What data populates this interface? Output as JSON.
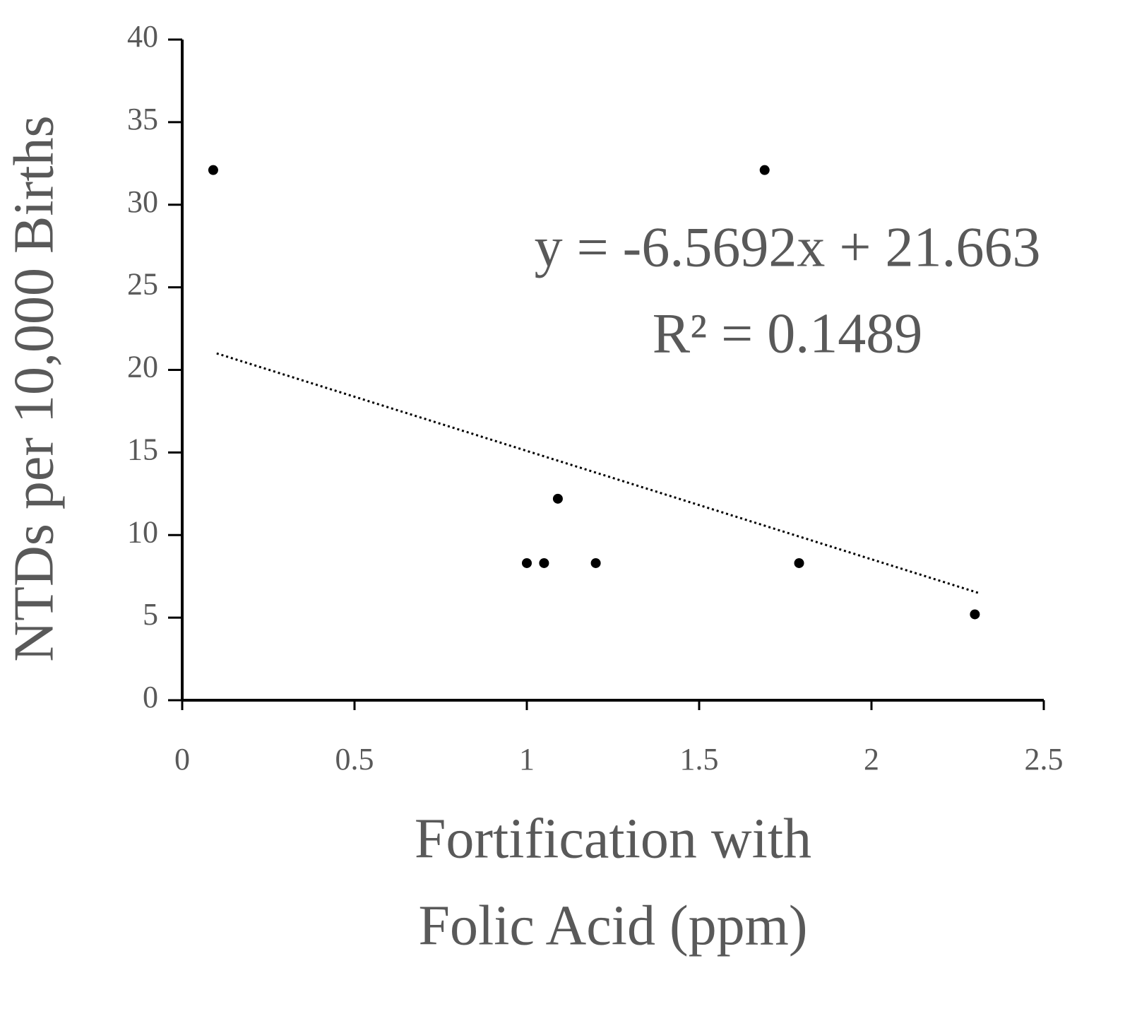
{
  "chart_data": {
    "type": "scatter",
    "x_label": [
      "Fortification with",
      "Folic Acid (ppm)"
    ],
    "y_label": "NTDs per 10,000 Births",
    "annotations": [
      "y = -6.5692x + 21.663",
      "R² = 0.1489"
    ],
    "x": [
      0.09,
      1.69,
      1.0,
      1.05,
      1.2,
      1.09,
      1.79,
      2.3
    ],
    "values": [
      32.1,
      32.1,
      8.3,
      8.3,
      8.3,
      12.2,
      8.3,
      5.2
    ],
    "color": "#000000",
    "trendline": {
      "x": [
        0.1,
        2.31
      ],
      "values": [
        21.0,
        6.5
      ],
      "color": "#000000"
    },
    "xlim": [
      0,
      2.5
    ],
    "xticks": [
      0,
      0.5,
      1,
      1.5,
      2,
      2.5
    ],
    "ylim": [
      0,
      40
    ],
    "yticks": [
      0,
      5,
      10,
      15,
      20,
      25,
      30,
      35,
      40
    ]
  }
}
